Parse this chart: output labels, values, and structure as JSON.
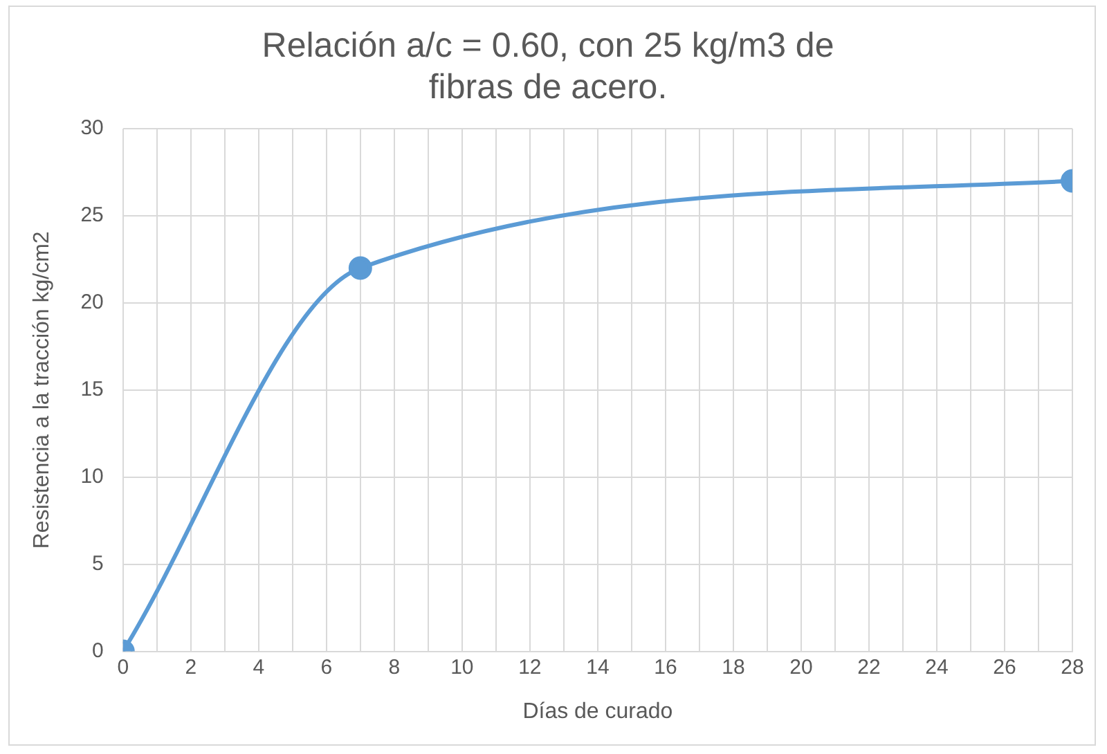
{
  "chart_data": {
    "type": "line",
    "title": "Relación a/c = 0.60, con 25 kg/m3 de fibras de acero.",
    "xlabel": "Días de curado",
    "ylabel": "Resistencia a la tracción kg/cm2",
    "x": [
      0,
      7,
      28
    ],
    "series": [
      {
        "color": "#5b9bd5",
        "values": [
          0,
          22,
          27
        ]
      }
    ],
    "xlim": [
      0,
      28
    ],
    "xticks": [
      0,
      {
        "value": 1,
        "label": null
      },
      2,
      {
        "value": 3,
        "label": null
      },
      4,
      {
        "value": 5,
        "label": null
      },
      6,
      {
        "value": 7,
        "label": null
      },
      8,
      {
        "value": 9,
        "label": null
      },
      10,
      {
        "value": 11,
        "label": null
      },
      12,
      {
        "value": 13,
        "label": null
      },
      14,
      {
        "value": 15,
        "label": null
      },
      16,
      {
        "value": 17,
        "label": null
      },
      18,
      {
        "value": 19,
        "label": null
      },
      20,
      {
        "value": 21,
        "label": null
      },
      22,
      {
        "value": 23,
        "label": null
      },
      24,
      {
        "value": 25,
        "label": null
      },
      26,
      {
        "value": 27,
        "label": null
      },
      28
    ],
    "ylim": [
      0,
      30
    ],
    "yticks": [
      0,
      5,
      10,
      15,
      20,
      25,
      30
    ],
    "grid": true,
    "legend": false,
    "marker": "circle",
    "line_style": "solid"
  }
}
